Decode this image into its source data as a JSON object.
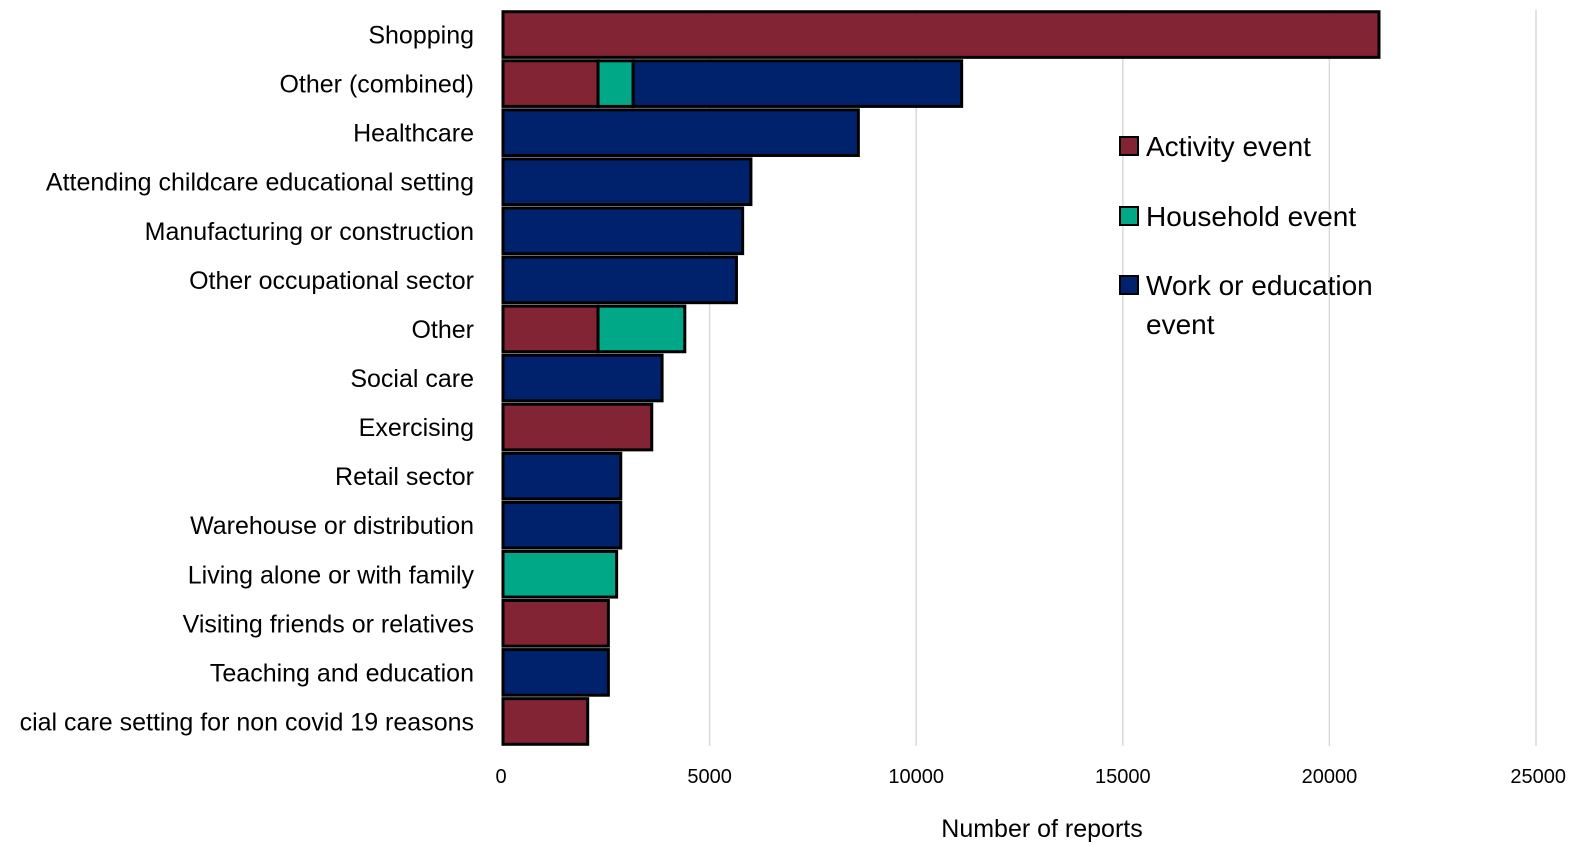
{
  "chart_data": {
    "type": "bar",
    "orientation": "horizontal",
    "stacked": true,
    "categories": [
      "Shopping",
      "Other (combined)",
      "Healthcare",
      "Attending childcare educational setting",
      "Manufacturing or construction",
      "Other occupational sector",
      "Other",
      "Social care",
      "Exercising",
      "Retail sector",
      "Warehouse or distribution",
      "Living alone or with family",
      "Visiting friends or relatives",
      "Teaching and education",
      "cial care setting for non covid 19 reasons"
    ],
    "series": [
      {
        "name": "Activity event",
        "color": "#822433",
        "values": [
          21200,
          2300,
          0,
          0,
          0,
          0,
          2300,
          0,
          3600,
          0,
          0,
          0,
          2550,
          0,
          2050
        ]
      },
      {
        "name": "Household event",
        "color": "#00a887",
        "values": [
          0,
          850,
          0,
          0,
          0,
          0,
          2100,
          0,
          0,
          0,
          0,
          2750,
          0,
          0,
          0
        ]
      },
      {
        "name": "Work or education event",
        "color": "#00226c",
        "values": [
          0,
          7950,
          8600,
          6000,
          5800,
          5650,
          0,
          3850,
          0,
          2850,
          2850,
          0,
          0,
          2550,
          0
        ]
      }
    ],
    "xlabel": "Number of reports",
    "ylabel": "",
    "xlim": [
      0,
      25000
    ],
    "xticks": [
      "0",
      "5000",
      "10000",
      "15000",
      "20000",
      "25000"
    ],
    "grid": "vertical",
    "legend_position": "right",
    "legend_labels": [
      [
        "Activity event"
      ],
      [
        "Household event"
      ],
      [
        "Work or education",
        "event"
      ]
    ]
  }
}
